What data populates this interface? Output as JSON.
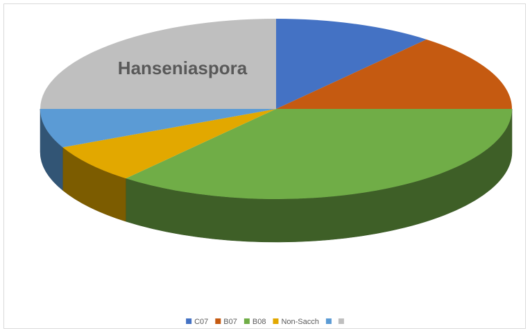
{
  "chart_data": {
    "type": "pie",
    "categories": [
      "C07",
      "B07",
      "B08",
      "Non-Sacch",
      null,
      null
    ],
    "values": [
      11,
      14,
      36,
      7,
      7,
      25
    ],
    "colors": [
      "#4472c4",
      "#c55a11",
      "#70ad47",
      "#e2a800",
      "#5b9bd5",
      "#bfbfbf"
    ],
    "annotation": "Hanseniaspora",
    "legend": "bottom"
  }
}
